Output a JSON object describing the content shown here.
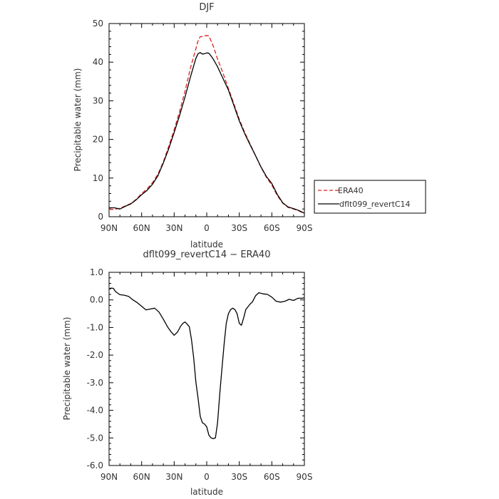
{
  "chart_data": [
    {
      "type": "line",
      "title": "DJF",
      "xlabel": "latitude",
      "ylabel": "Precipitable water (mm)",
      "xlim": [
        90,
        -90
      ],
      "ylim": [
        0,
        50
      ],
      "x_ticks": [
        90,
        60,
        30,
        0,
        -30,
        -60,
        -90
      ],
      "x_tick_labels": [
        "90N",
        "60N",
        "30N",
        "0",
        "30S",
        "60S",
        "90S"
      ],
      "y_ticks": [
        0,
        10,
        20,
        30,
        40,
        50
      ],
      "y_tick_labels": [
        "0",
        "10",
        "20",
        "30",
        "40",
        "50"
      ],
      "legend_position": "right",
      "series": [
        {
          "name": "ERA40",
          "color": "#dd2222",
          "dash": "dashed",
          "x": [
            90,
            85,
            80,
            75,
            70,
            65,
            60,
            55,
            50,
            45,
            40,
            35,
            30,
            25,
            20,
            15,
            10,
            8,
            6,
            4,
            2,
            0,
            -2,
            -4,
            -6,
            -8,
            -10,
            -15,
            -20,
            -25,
            -30,
            -35,
            -40,
            -45,
            -50,
            -55,
            -60,
            -65,
            -70,
            -75,
            -80,
            -85,
            -90
          ],
          "values": [
            1.9,
            1.9,
            2.2,
            2.8,
            3.4,
            4.5,
            6.0,
            7.2,
            8.8,
            11.0,
            14.2,
            18.2,
            22.5,
            27.2,
            32.5,
            38.5,
            43.5,
            45.5,
            46.6,
            46.6,
            46.8,
            46.9,
            46.8,
            45.5,
            44.2,
            42.5,
            40.8,
            37.2,
            33.2,
            29.2,
            25.2,
            21.8,
            18.8,
            15.8,
            12.8,
            10.2,
            8.2,
            5.5,
            3.5,
            2.4,
            2.0,
            1.5,
            0.8
          ]
        },
        {
          "name": "dflt099_revertC14",
          "color": "#000000",
          "dash": "solid",
          "x": [
            90,
            85,
            80,
            75,
            70,
            65,
            60,
            55,
            50,
            45,
            40,
            35,
            30,
            25,
            20,
            15,
            10,
            8,
            6,
            4,
            2,
            0,
            -2,
            -4,
            -6,
            -8,
            -10,
            -15,
            -20,
            -25,
            -30,
            -35,
            -40,
            -45,
            -50,
            -55,
            -60,
            -65,
            -70,
            -75,
            -80,
            -85,
            -90
          ],
          "values": [
            2.3,
            2.3,
            2.0,
            2.7,
            3.3,
            4.4,
            5.7,
            6.8,
            8.4,
            10.6,
            13.9,
            17.6,
            21.8,
            26.2,
            31.0,
            36.2,
            41.0,
            42.2,
            42.5,
            42.1,
            42.2,
            42.4,
            42.3,
            41.6,
            40.8,
            39.8,
            38.8,
            35.8,
            32.8,
            28.8,
            24.8,
            21.5,
            18.6,
            15.8,
            12.9,
            10.4,
            8.6,
            5.8,
            3.6,
            2.5,
            2.1,
            1.6,
            0.9
          ]
        }
      ]
    },
    {
      "type": "line",
      "title": "dflt099_revertC14 − ERA40",
      "xlabel": "latitude",
      "ylabel": "Precipitable water (mm)",
      "xlim": [
        90,
        -90
      ],
      "ylim": [
        -6,
        1
      ],
      "x_ticks": [
        90,
        60,
        30,
        0,
        -30,
        -60,
        -90
      ],
      "x_tick_labels": [
        "90N",
        "60N",
        "30N",
        "0",
        "30S",
        "60S",
        "90S"
      ],
      "y_ticks": [
        -6,
        -5,
        -4,
        -3,
        -2,
        -1,
        0,
        1
      ],
      "y_tick_labels": [
        "-6.0",
        "-5.0",
        "-4.0",
        "-3.0",
        "-2.0",
        "-1.0",
        "0.0",
        "1.0"
      ],
      "series": [
        {
          "color": "#000000",
          "dash": "solid",
          "x": [
            90,
            88,
            86,
            84,
            80,
            76,
            72,
            68,
            64,
            60,
            56,
            52,
            48,
            44,
            40,
            36,
            33,
            30,
            27,
            24,
            22,
            20,
            18,
            16,
            14,
            12,
            10,
            8,
            6,
            4,
            2,
            0,
            -2,
            -4,
            -6,
            -8,
            -10,
            -12,
            -14,
            -16,
            -18,
            -20,
            -22,
            -24,
            -26,
            -28,
            -30,
            -32,
            -34,
            -36,
            -38,
            -40,
            -42,
            -45,
            -48,
            -52,
            -56,
            -60,
            -64,
            -68,
            -72,
            -76,
            -80,
            -84,
            -88,
            -90
          ],
          "values": [
            0.4,
            0.43,
            0.42,
            0.3,
            0.19,
            0.17,
            0.13,
            0.0,
            -0.1,
            -0.23,
            -0.36,
            -0.33,
            -0.3,
            -0.44,
            -0.7,
            -0.98,
            -1.15,
            -1.28,
            -1.17,
            -0.95,
            -0.85,
            -0.8,
            -0.88,
            -0.97,
            -1.45,
            -2.1,
            -2.98,
            -3.55,
            -4.22,
            -4.45,
            -4.5,
            -4.6,
            -4.9,
            -5.0,
            -5.03,
            -5.0,
            -4.45,
            -3.4,
            -2.5,
            -1.6,
            -0.85,
            -0.5,
            -0.35,
            -0.3,
            -0.35,
            -0.5,
            -0.85,
            -0.92,
            -0.65,
            -0.35,
            -0.25,
            -0.15,
            -0.08,
            0.15,
            0.26,
            0.22,
            0.2,
            0.1,
            -0.05,
            -0.08,
            -0.05,
            0.02,
            -0.02,
            0.06,
            0.06,
            0.08
          ]
        }
      ]
    }
  ]
}
